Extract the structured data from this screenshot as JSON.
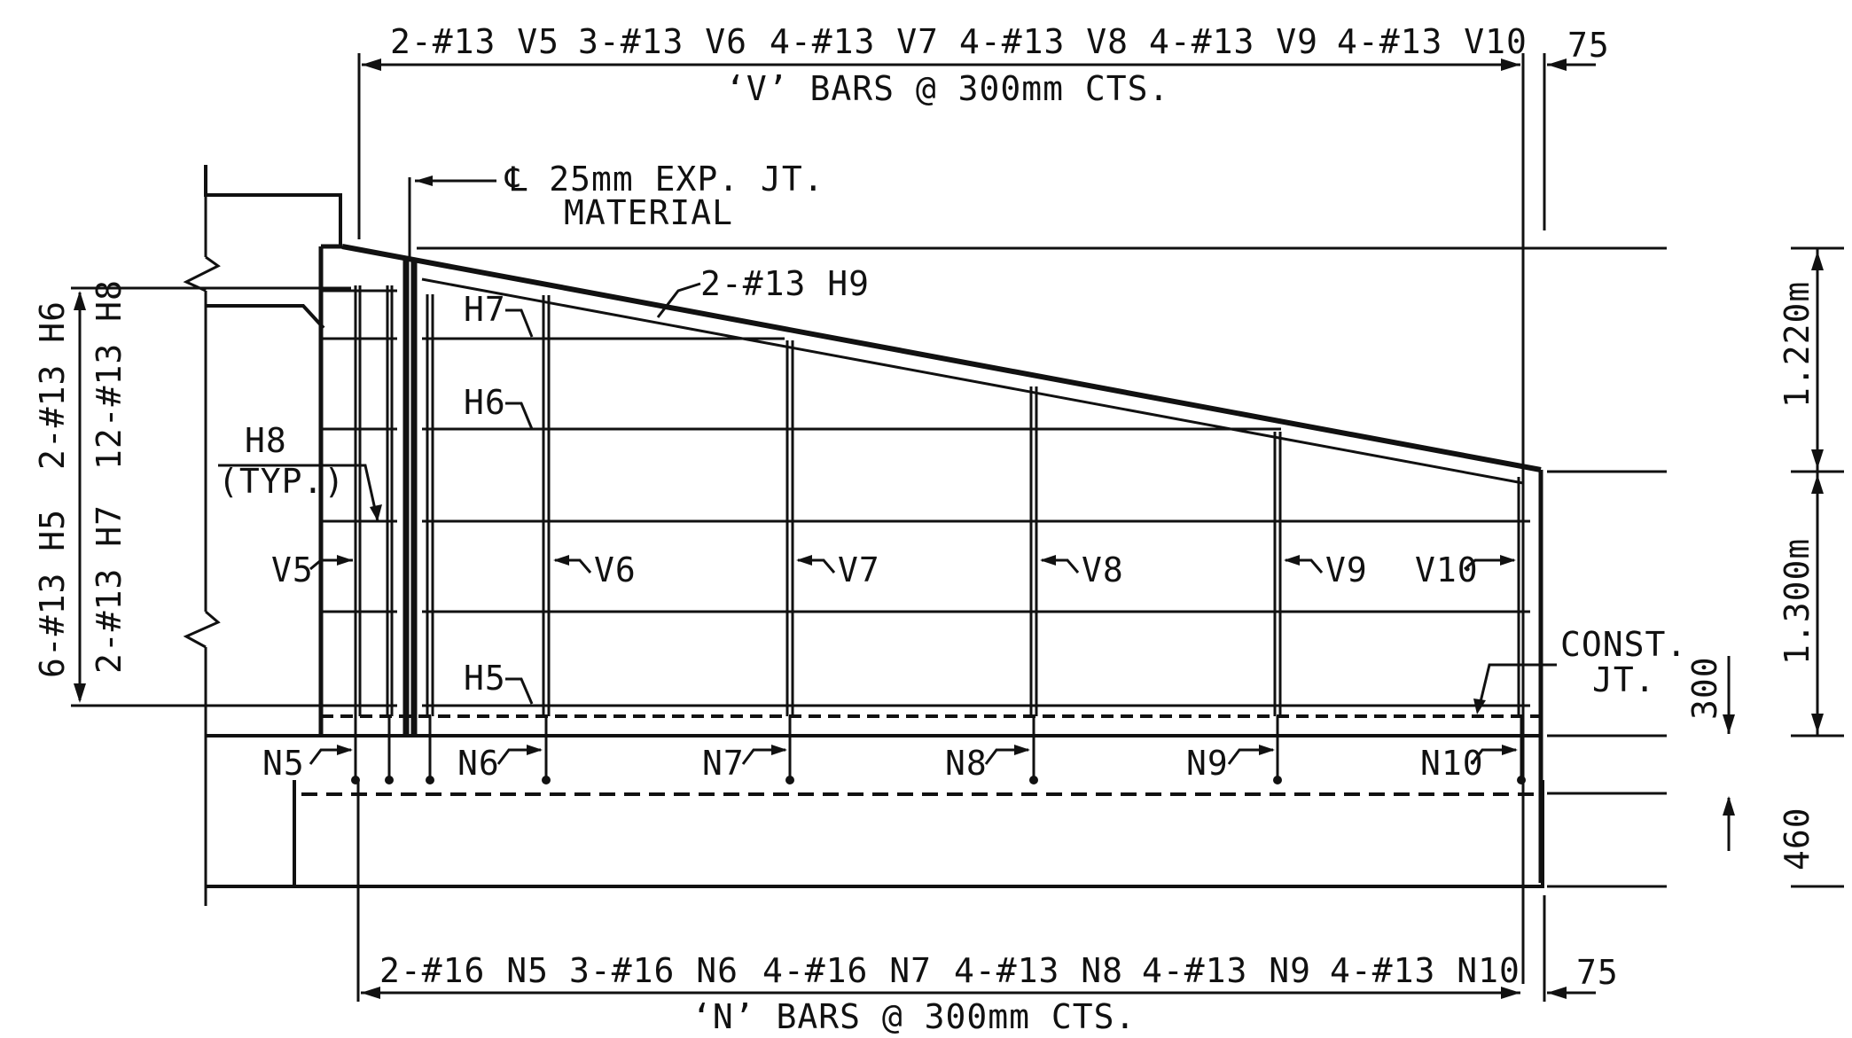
{
  "top_labels": {
    "v_bars": [
      "2-#13 V5",
      "3-#13 V6",
      "4-#13 V7",
      "4-#13 V8",
      "4-#13 V9",
      "4-#13 V10"
    ],
    "v_spacing": "‘V’ BARS @ 300mm CTS.",
    "edge_75": "75"
  },
  "bottom_labels": {
    "n_bars": [
      "2-#16 N5",
      "3-#16 N6",
      "4-#16 N7",
      "4-#13 N8",
      "4-#13 N9",
      "4-#13 N10"
    ],
    "n_spacing": "‘N’ BARS @ 300mm    CTS.",
    "edge_75": "75"
  },
  "callouts": {
    "exp_joint_line1": "℄ 25mm EXP. JT.",
    "exp_joint_line2": "MATERIAL",
    "h9": "2-#13 H9",
    "h7": "H7",
    "h6": "H6",
    "h5": "H5",
    "h8": "H8",
    "h8_typ": "(TYP.)",
    "const_jt_1": "CONST.",
    "const_jt_2": "JT."
  },
  "bar_tags": {
    "v": [
      "V5",
      "V6",
      "V7",
      "V8",
      "V9",
      "V10"
    ],
    "n": [
      "N5",
      "N6",
      "N7",
      "N8",
      "N9",
      "N10"
    ]
  },
  "left_dims": {
    "outer_upper": "2-#13 H6",
    "outer_lower": "6-#13 H5",
    "inner_upper": "12-#13 H8",
    "inner_lower": "2-#13 H7"
  },
  "right_dims": {
    "upper": "1.220m",
    "lower": "1.300m",
    "small": "300",
    "footing": "460"
  }
}
